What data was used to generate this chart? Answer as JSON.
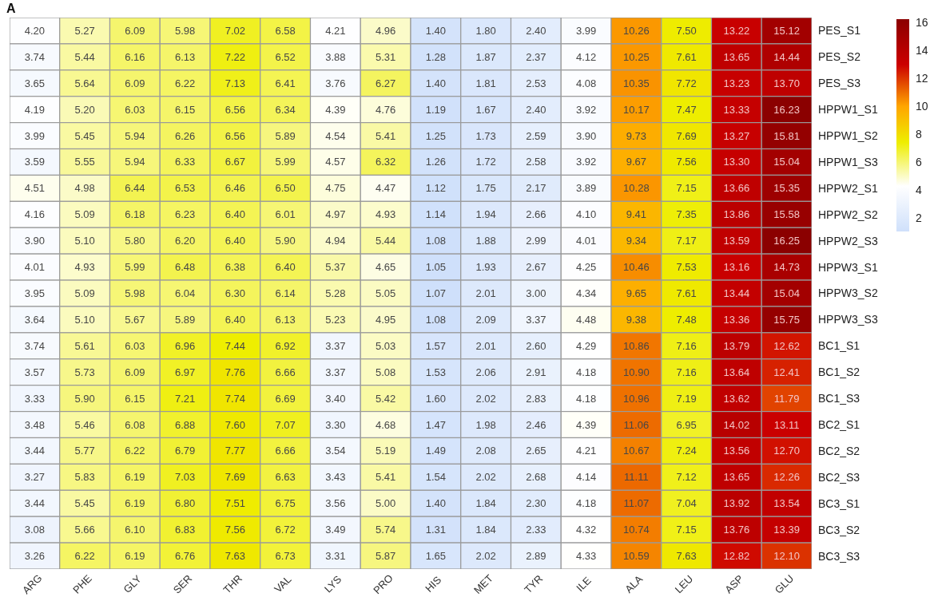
{
  "chart_data": {
    "type": "heatmap",
    "annotations": [
      "A"
    ],
    "categories": [
      "ARG",
      "PHE",
      "GLY",
      "SER",
      "THR",
      "VAL",
      "LYS",
      "PRO",
      "HIS",
      "MET",
      "TYR",
      "ILE",
      "ALA",
      "LEU",
      "ASP",
      "GLU"
    ],
    "y_categories": [
      "PES_S1",
      "PES_S2",
      "PES_S3",
      "HPPW1_S1",
      "HPPW1_S2",
      "HPPW1_S3",
      "HPPW2_S1",
      "HPPW2_S2",
      "HPPW2_S3",
      "HPPW3_S1",
      "HPPW3_S2",
      "HPPW3_S3",
      "BC1_S1",
      "BC1_S2",
      "BC1_S3",
      "BC2_S1",
      "BC2_S2",
      "BC2_S3",
      "BC3_S1",
      "BC3_S2",
      "BC3_S3"
    ],
    "cells": [
      [
        4.2,
        5.27,
        6.09,
        5.98,
        7.02,
        6.58,
        4.21,
        4.96,
        1.4,
        1.8,
        2.4,
        3.99,
        10.26,
        7.5,
        13.22,
        15.12
      ],
      [
        3.74,
        5.44,
        6.16,
        6.13,
        7.22,
        6.52,
        3.88,
        5.31,
        1.28,
        1.87,
        2.37,
        4.12,
        10.25,
        7.61,
        13.65,
        14.44
      ],
      [
        3.65,
        5.64,
        6.09,
        6.22,
        7.13,
        6.41,
        3.76,
        6.27,
        1.4,
        1.81,
        2.53,
        4.08,
        10.35,
        7.72,
        13.23,
        13.7
      ],
      [
        4.19,
        5.2,
        6.03,
        6.15,
        6.56,
        6.34,
        4.39,
        4.76,
        1.19,
        1.67,
        2.4,
        3.92,
        10.17,
        7.47,
        13.33,
        16.23
      ],
      [
        3.99,
        5.45,
        5.94,
        6.26,
        6.56,
        5.89,
        4.54,
        5.41,
        1.25,
        1.73,
        2.59,
        3.9,
        9.73,
        7.69,
        13.27,
        15.81
      ],
      [
        3.59,
        5.55,
        5.94,
        6.33,
        6.67,
        5.99,
        4.57,
        6.32,
        1.26,
        1.72,
        2.58,
        3.92,
        9.67,
        7.56,
        13.3,
        15.04
      ],
      [
        4.51,
        4.98,
        6.44,
        6.53,
        6.46,
        6.5,
        4.75,
        4.47,
        1.12,
        1.75,
        2.17,
        3.89,
        10.28,
        7.15,
        13.66,
        15.35
      ],
      [
        4.16,
        5.09,
        6.18,
        6.23,
        6.4,
        6.01,
        4.97,
        4.93,
        1.14,
        1.94,
        2.66,
        4.1,
        9.41,
        7.35,
        13.86,
        15.58
      ],
      [
        3.9,
        5.1,
        5.8,
        6.2,
        6.4,
        5.9,
        4.94,
        5.44,
        1.08,
        1.88,
        2.99,
        4.01,
        9.34,
        7.17,
        13.59,
        16.25
      ],
      [
        4.01,
        4.93,
        5.99,
        6.48,
        6.38,
        6.4,
        5.37,
        4.65,
        1.05,
        1.93,
        2.67,
        4.25,
        10.46,
        7.53,
        13.16,
        14.73
      ],
      [
        3.95,
        5.09,
        5.98,
        6.04,
        6.3,
        6.14,
        5.28,
        5.05,
        1.07,
        2.01,
        3.0,
        4.34,
        9.65,
        7.61,
        13.44,
        15.04
      ],
      [
        3.64,
        5.1,
        5.67,
        5.89,
        6.4,
        6.13,
        5.23,
        4.95,
        1.08,
        2.09,
        3.37,
        4.48,
        9.38,
        7.48,
        13.36,
        15.75
      ],
      [
        3.74,
        5.61,
        6.03,
        6.96,
        7.44,
        6.92,
        3.37,
        5.03,
        1.57,
        2.01,
        2.6,
        4.29,
        10.86,
        7.16,
        13.79,
        12.62
      ],
      [
        3.57,
        5.73,
        6.09,
        6.97,
        7.76,
        6.66,
        3.37,
        5.08,
        1.53,
        2.06,
        2.91,
        4.18,
        10.9,
        7.16,
        13.64,
        12.41
      ],
      [
        3.33,
        5.9,
        6.15,
        7.21,
        7.74,
        6.69,
        3.4,
        5.42,
        1.6,
        2.02,
        2.83,
        4.18,
        10.96,
        7.19,
        13.62,
        11.79
      ],
      [
        3.48,
        5.46,
        6.08,
        6.88,
        7.6,
        7.07,
        3.3,
        4.68,
        1.47,
        1.98,
        2.46,
        4.39,
        11.06,
        6.95,
        14.02,
        13.11
      ],
      [
        3.44,
        5.77,
        6.22,
        6.79,
        7.77,
        6.66,
        3.54,
        5.19,
        1.49,
        2.08,
        2.65,
        4.21,
        10.67,
        7.24,
        13.56,
        12.7
      ],
      [
        3.27,
        5.83,
        6.19,
        7.03,
        7.69,
        6.63,
        3.43,
        5.41,
        1.54,
        2.02,
        2.68,
        4.14,
        11.11,
        7.12,
        13.65,
        12.26
      ],
      [
        3.44,
        5.45,
        6.19,
        6.8,
        7.51,
        6.75,
        3.56,
        5.0,
        1.4,
        1.84,
        2.3,
        4.18,
        11.07,
        7.04,
        13.92,
        13.54
      ],
      [
        3.08,
        5.66,
        6.1,
        6.83,
        7.56,
        6.72,
        3.49,
        5.74,
        1.31,
        1.84,
        2.33,
        4.32,
        10.74,
        7.15,
        13.76,
        13.39
      ],
      [
        3.26,
        6.22,
        6.19,
        6.76,
        7.63,
        6.73,
        3.31,
        5.87,
        1.65,
        2.02,
        2.89,
        4.33,
        10.59,
        7.63,
        12.82,
        12.1
      ]
    ],
    "cell_labels": [
      [
        "4.20",
        "5.27",
        "6.09",
        "5.98",
        "7.02",
        "6.58",
        "4.21",
        "4.96",
        "1.40",
        "1.80",
        "2.40",
        "3.99",
        "10.26",
        "7.50",
        "13.22",
        "15.12"
      ],
      [
        "3.74",
        "5.44",
        "6.16",
        "6.13",
        "7.22",
        "6.52",
        "3.88",
        "5.31",
        "1.28",
        "1.87",
        "2.37",
        "4.12",
        "10.25",
        "7.61",
        "13.65",
        "14.44"
      ],
      [
        "3.65",
        "5.64",
        "6.09",
        "6.22",
        "7.13",
        "6.41",
        "3.76",
        "6.27",
        "1.40",
        "1.81",
        "2.53",
        "4.08",
        "10.35",
        "7.72",
        "13.23",
        "13.70"
      ],
      [
        "4.19",
        "5.20",
        "6.03",
        "6.15",
        "6.56",
        "6.34",
        "4.39",
        "4.76",
        "1.19",
        "1.67",
        "2.40",
        "3.92",
        "10.17",
        "7.47",
        "13.33",
        "16.23"
      ],
      [
        "3.99",
        "5.45",
        "5.94",
        "6.26",
        "6.56",
        "5.89",
        "4.54",
        "5.41",
        "1.25",
        "1.73",
        "2.59",
        "3.90",
        "9.73",
        "7.69",
        "13.27",
        "15.81"
      ],
      [
        "3.59",
        "5.55",
        "5.94",
        "6.33",
        "6.67",
        "5.99",
        "4.57",
        "6.32",
        "1.26",
        "1.72",
        "2.58",
        "3.92",
        "9.67",
        "7.56",
        "13.30",
        "15.04"
      ],
      [
        "4.51",
        "4.98",
        "6.44",
        "6.53",
        "6.46",
        "6.50",
        "4.75",
        "4.47",
        "1.12",
        "1.75",
        "2.17",
        "3.89",
        "10.28",
        "7.15",
        "13.66",
        "15.35"
      ],
      [
        "4.16",
        "5.09",
        "6.18",
        "6.23",
        "6.40",
        "6.01",
        "4.97",
        "4.93",
        "1.14",
        "1.94",
        "2.66",
        "4.10",
        "9.41",
        "7.35",
        "13.86",
        "15.58"
      ],
      [
        "3.90",
        "5.10",
        "5.80",
        "6.20",
        "6.40",
        "5.90",
        "4.94",
        "5.44",
        "1.08",
        "1.88",
        "2.99",
        "4.01",
        "9.34",
        "7.17",
        "13.59",
        "16.25"
      ],
      [
        "4.01",
        "4.93",
        "5.99",
        "6.48",
        "6.38",
        "6.40",
        "5.37",
        "4.65",
        "1.05",
        "1.93",
        "2.67",
        "4.25",
        "10.46",
        "7.53",
        "13.16",
        "14.73"
      ],
      [
        "3.95",
        "5.09",
        "5.98",
        "6.04",
        "6.30",
        "6.14",
        "5.28",
        "5.05",
        "1.07",
        "2.01",
        "3.00",
        "4.34",
        "9.65",
        "7.61",
        "13.44",
        "15.04"
      ],
      [
        "3.64",
        "5.10",
        "5.67",
        "5.89",
        "6.40",
        "6.13",
        "5.23",
        "4.95",
        "1.08",
        "2.09",
        "3.37",
        "4.48",
        "9.38",
        "7.48",
        "13.36",
        "15.75"
      ],
      [
        "3.74",
        "5.61",
        "6.03",
        "6.96",
        "7.44",
        "6.92",
        "3.37",
        "5.03",
        "1.57",
        "2.01",
        "2.60",
        "4.29",
        "10.86",
        "7.16",
        "13.79",
        "12.62"
      ],
      [
        "3.57",
        "5.73",
        "6.09",
        "6.97",
        "7.76",
        "6.66",
        "3.37",
        "5.08",
        "1.53",
        "2.06",
        "2.91",
        "4.18",
        "10.90",
        "7.16",
        "13.64",
        "12.41"
      ],
      [
        "3.33",
        "5.90",
        "6.15",
        "7.21",
        "7.74",
        "6.69",
        "3.40",
        "5.42",
        "1.60",
        "2.02",
        "2.83",
        "4.18",
        "10.96",
        "7.19",
        "13.62",
        "11.79"
      ],
      [
        "3.48",
        "5.46",
        "6.08",
        "6.88",
        "7.60",
        "7.07",
        "3.30",
        "4.68",
        "1.47",
        "1.98",
        "2.46",
        "4.39",
        "11.06",
        "6.95",
        "14.02",
        "13.11"
      ],
      [
        "3.44",
        "5.77",
        "6.22",
        "6.79",
        "7.77",
        "6.66",
        "3.54",
        "5.19",
        "1.49",
        "2.08",
        "2.65",
        "4.21",
        "10.67",
        "7.24",
        "13.56",
        "12.70"
      ],
      [
        "3.27",
        "5.83",
        "6.19",
        "7.03",
        "7.69",
        "6.63",
        "3.43",
        "5.41",
        "1.54",
        "2.02",
        "2.68",
        "4.14",
        "11.11",
        "7.12",
        "13.65",
        "12.26"
      ],
      [
        "3.44",
        "5.45",
        "6.19",
        "6.80",
        "7.51",
        "6.75",
        "3.56",
        "5.00",
        "1.40",
        "1.84",
        "2.30",
        "4.18",
        "11.07",
        "7.04",
        "13.92",
        "13.54"
      ],
      [
        "3.08",
        "5.66",
        "6.10",
        "6.83",
        "7.56",
        "6.72",
        "3.49",
        "5.74",
        "1.31",
        "1.84",
        "2.33",
        "4.32",
        "10.74",
        "7.15",
        "13.76",
        "13.39"
      ],
      [
        "3.26",
        "6.22",
        "6.19",
        "6.76",
        "7.63",
        "6.73",
        "3.31",
        "5.87",
        "1.65",
        "2.02",
        "2.89",
        "4.33",
        "10.59",
        "7.63",
        "12.82",
        "12.10"
      ]
    ],
    "clim": [
      1.05,
      16.25
    ],
    "cticks": [
      2,
      4,
      6,
      8,
      10,
      12,
      14,
      16
    ]
  }
}
